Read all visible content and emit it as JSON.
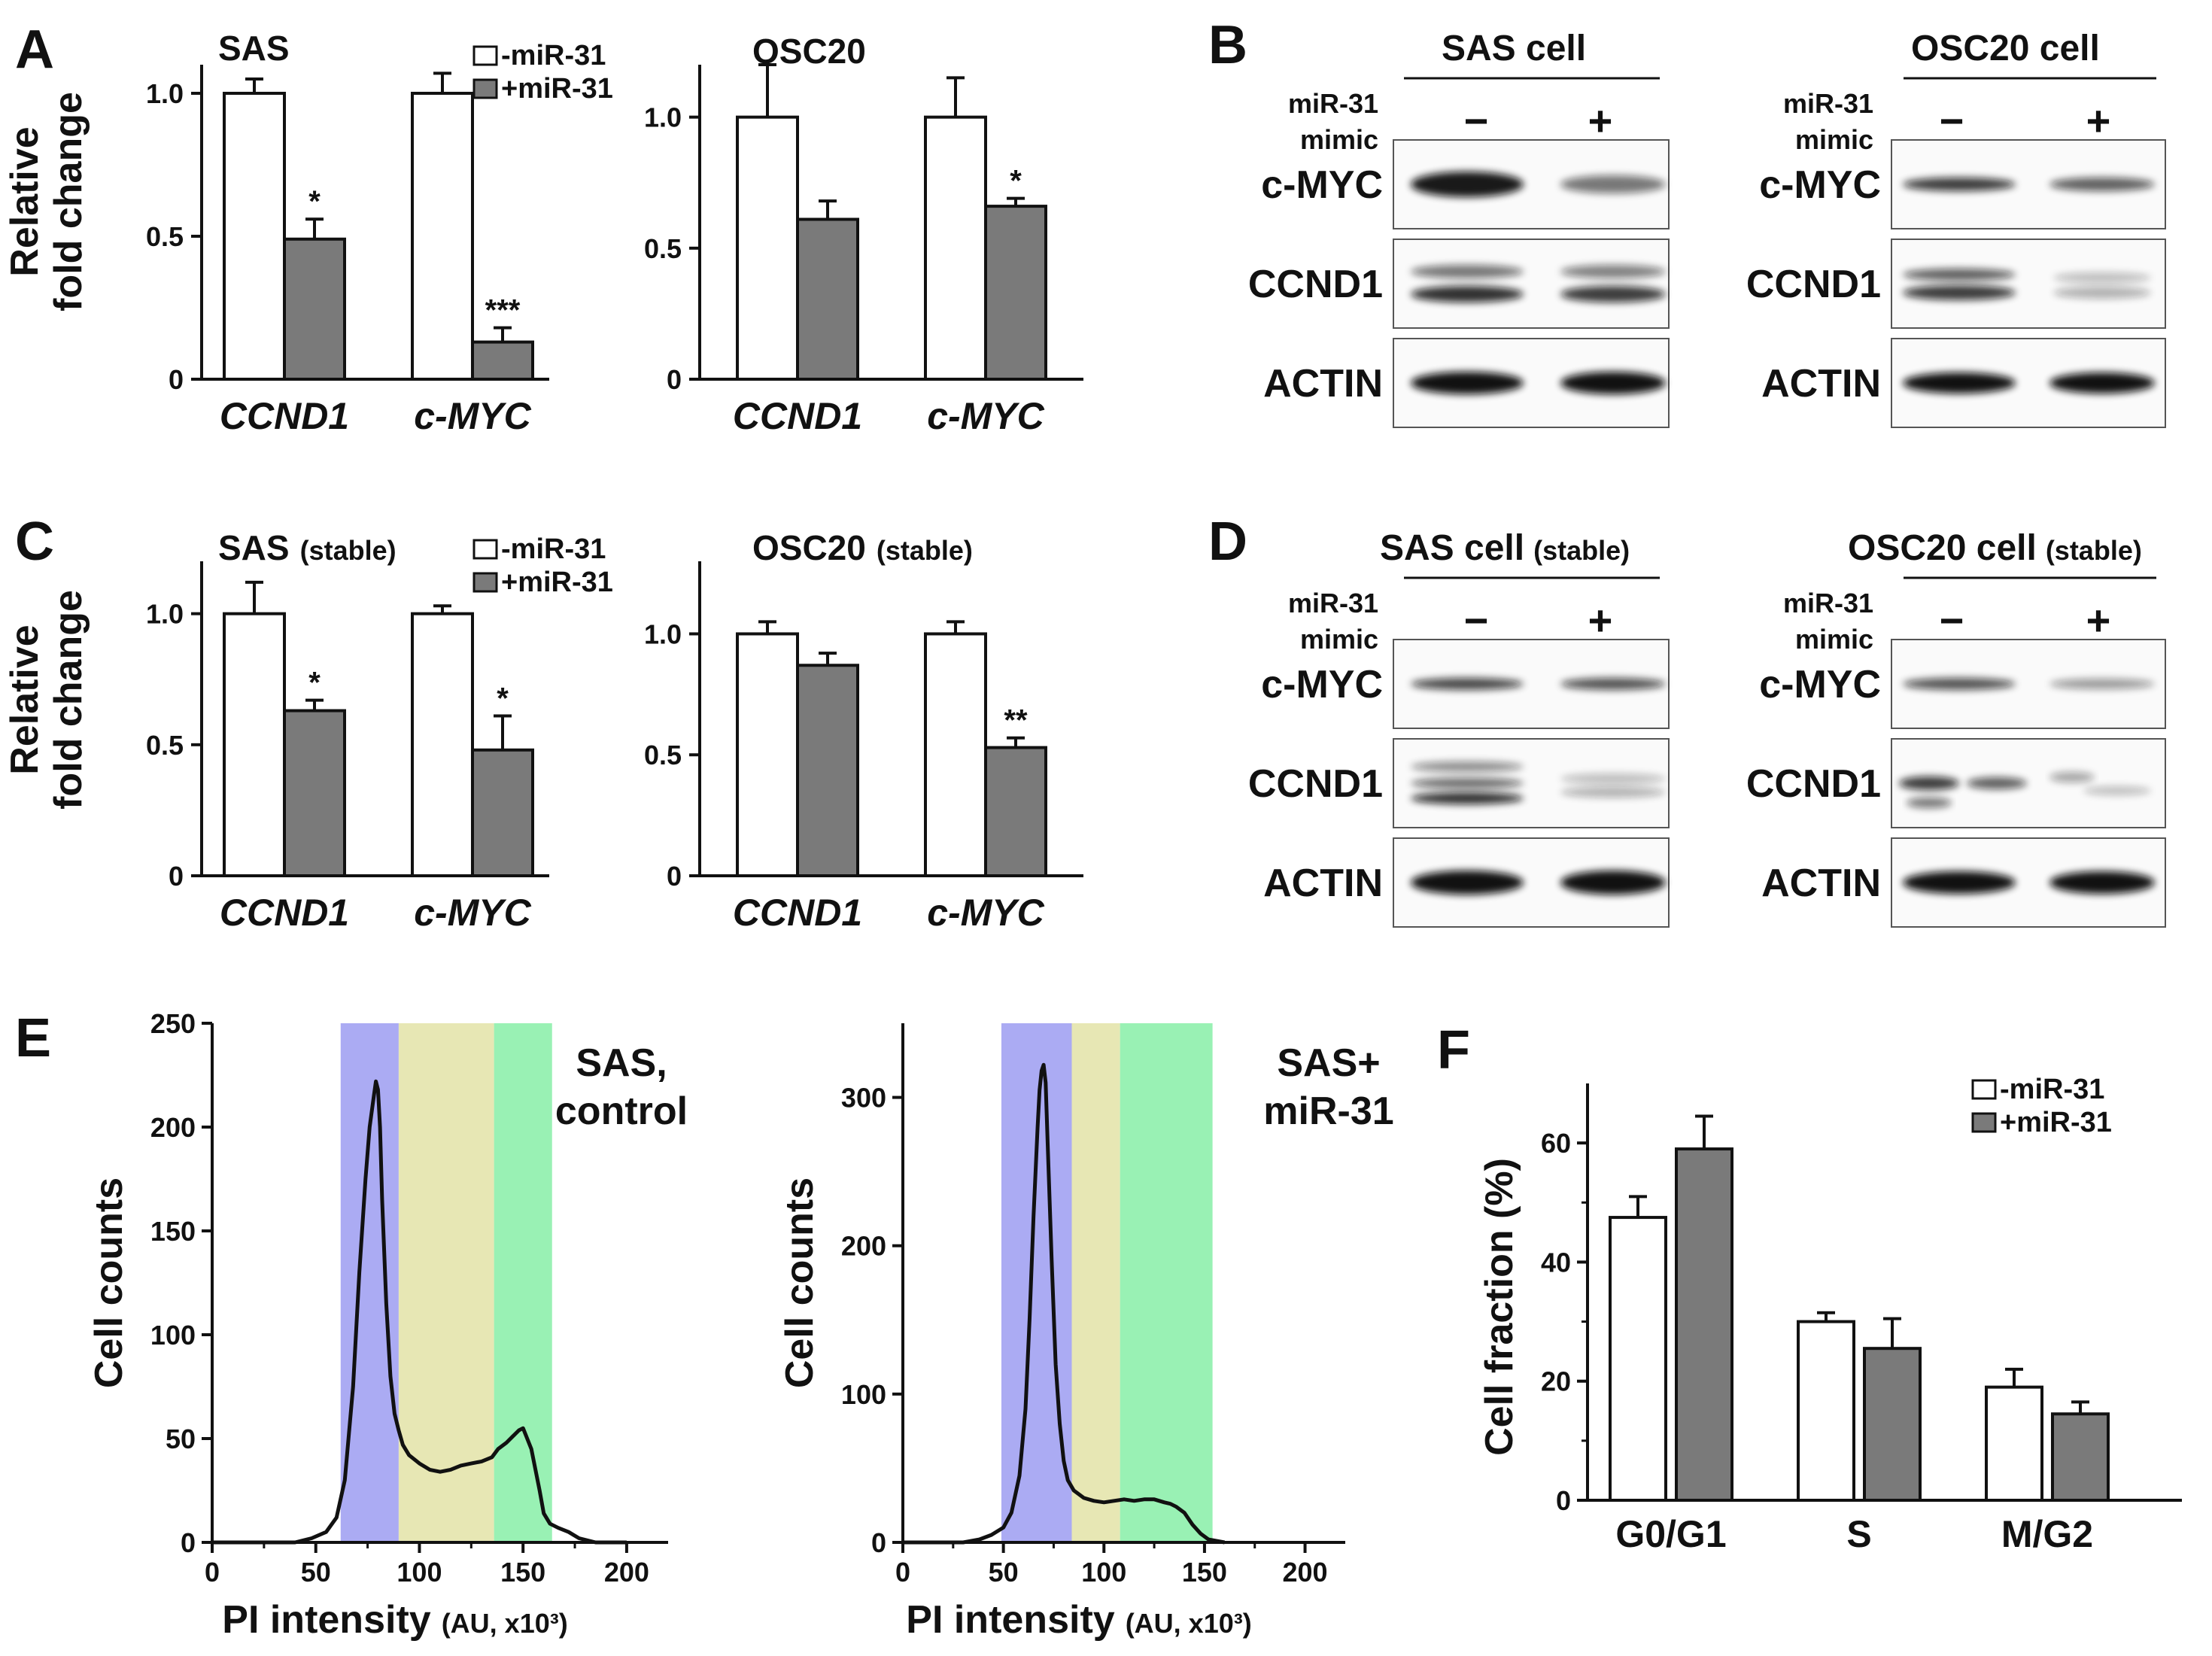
{
  "panels": {
    "A": {
      "letter": "A",
      "ylabel_line1": "Relative",
      "ylabel_line2": "fold change",
      "legend_minus": "-miR-31",
      "legend_plus": "+miR-31",
      "charts": [
        {
          "title": "SAS",
          "subtitle": "",
          "type": "bar",
          "categories": [
            "CCND1",
            "c-MYC"
          ],
          "ylim": [
            0,
            1.1
          ],
          "yticks": [
            "0",
            "0.5",
            "1.0"
          ],
          "series": [
            {
              "name": "-miR-31",
              "values": [
                1.0,
                1.0
              ],
              "errors": [
                0.05,
                0.07
              ]
            },
            {
              "name": "+miR-31",
              "values": [
                0.49,
                0.13
              ],
              "errors": [
                0.07,
                0.05
              ]
            }
          ],
          "significance": [
            "*",
            "***"
          ]
        },
        {
          "title": "OSC20",
          "subtitle": "",
          "type": "bar",
          "categories": [
            "CCND1",
            "c-MYC"
          ],
          "ylim": [
            0,
            1.2
          ],
          "yticks": [
            "0",
            "0.5",
            "1.0"
          ],
          "series": [
            {
              "name": "-miR-31",
              "values": [
                1.0,
                1.0
              ],
              "errors": [
                0.2,
                0.15
              ]
            },
            {
              "name": "+miR-31",
              "values": [
                0.61,
                0.66
              ],
              "errors": [
                0.07,
                0.03
              ]
            }
          ],
          "significance": [
            "",
            "*"
          ]
        }
      ]
    },
    "B": {
      "letter": "B",
      "mimic_line1": "miR-31",
      "mimic_line2": "mimic",
      "minus": "−",
      "plus": "+",
      "blots": [
        {
          "title": "SAS cell",
          "subtitle": "",
          "rows": [
            "c-MYC",
            "CCND1",
            "ACTIN"
          ]
        },
        {
          "title": "OSC20 cell",
          "subtitle": "",
          "rows": [
            "c-MYC",
            "CCND1",
            "ACTIN"
          ]
        }
      ]
    },
    "C": {
      "letter": "C",
      "ylabel_line1": "Relative",
      "ylabel_line2": "fold change",
      "legend_minus": "-miR-31",
      "legend_plus": "+miR-31",
      "charts": [
        {
          "title": "SAS",
          "subtitle": "(stable)",
          "type": "bar",
          "categories": [
            "CCND1",
            "c-MYC"
          ],
          "ylim": [
            0,
            1.2
          ],
          "yticks": [
            "0",
            "0.5",
            "1.0"
          ],
          "series": [
            {
              "name": "-miR-31",
              "values": [
                1.0,
                1.0
              ],
              "errors": [
                0.12,
                0.03
              ]
            },
            {
              "name": "+miR-31",
              "values": [
                0.63,
                0.48
              ],
              "errors": [
                0.04,
                0.13
              ]
            }
          ],
          "significance": [
            "*",
            "*"
          ]
        },
        {
          "title": "OSC20",
          "subtitle": "(stable)",
          "type": "bar",
          "categories": [
            "CCND1",
            "c-MYC"
          ],
          "ylim": [
            0,
            1.3
          ],
          "yticks": [
            "0",
            "0.5",
            "1.0"
          ],
          "series": [
            {
              "name": "-miR-31",
              "values": [
                1.0,
                1.0
              ],
              "errors": [
                0.05,
                0.05
              ]
            },
            {
              "name": "+miR-31",
              "values": [
                0.87,
                0.53
              ],
              "errors": [
                0.05,
                0.04
              ]
            }
          ],
          "significance": [
            "",
            "**"
          ]
        }
      ]
    },
    "D": {
      "letter": "D",
      "mimic_line1": "miR-31",
      "mimic_line2": "mimic",
      "minus": "−",
      "plus": "+",
      "blots": [
        {
          "title": "SAS cell",
          "subtitle": "(stable)",
          "rows": [
            "c-MYC",
            "CCND1",
            "ACTIN"
          ]
        },
        {
          "title": "OSC20 cell",
          "subtitle": "(stable)",
          "rows": [
            "c-MYC",
            "CCND1",
            "ACTIN"
          ]
        }
      ]
    },
    "E": {
      "letter": "E",
      "ylabel": "Cell counts",
      "xlabel_main": "PI intensity",
      "xlabel_sub": "(AU, x10³)",
      "colors": {
        "g1": "#a6a6f2",
        "s": "#e6e6b0",
        "g2m": "#93f0b0"
      },
      "charts": [
        {
          "type": "line",
          "label_line1": "SAS,",
          "label_line2": "control",
          "xlim": [
            0,
            220
          ],
          "ylim": [
            0,
            250
          ],
          "xticks": [
            "0",
            "50",
            "100",
            "150",
            "200"
          ],
          "yticks": [
            "0",
            "50",
            "100",
            "150",
            "200",
            "250"
          ],
          "gates": {
            "g1": [
              62,
              90
            ],
            "s": [
              90,
              136
            ],
            "g2m": [
              136,
              164
            ]
          },
          "x": [
            0,
            40,
            48,
            55,
            60,
            64,
            68,
            71,
            74,
            76,
            78,
            79,
            80,
            81,
            82,
            84,
            86,
            88,
            90,
            92,
            95,
            100,
            105,
            110,
            115,
            120,
            125,
            130,
            135,
            138,
            142,
            145,
            148,
            150,
            152,
            154,
            156,
            158,
            160,
            163,
            167,
            172,
            177,
            185,
            200
          ],
          "y": [
            0,
            0,
            2,
            5,
            12,
            30,
            75,
            130,
            175,
            200,
            215,
            222,
            218,
            200,
            165,
            115,
            80,
            62,
            54,
            47,
            42,
            38,
            35,
            34,
            35,
            37,
            38,
            39,
            41,
            45,
            48,
            51,
            54,
            55,
            50,
            45,
            35,
            25,
            14,
            9,
            7,
            5,
            2,
            0,
            0
          ]
        },
        {
          "type": "line",
          "label_line1": "SAS+",
          "label_line2": "miR-31",
          "xlim": [
            0,
            220
          ],
          "ylim": [
            0,
            350
          ],
          "xticks": [
            "0",
            "50",
            "100",
            "150",
            "200"
          ],
          "yticks": [
            "0",
            "100",
            "200",
            "300"
          ],
          "gates": {
            "g1": [
              49,
              84
            ],
            "s": [
              84,
              108
            ],
            "g2m": [
              108,
              154
            ]
          },
          "x": [
            0,
            30,
            38,
            44,
            50,
            54,
            58,
            61,
            63,
            65,
            67,
            68,
            69,
            70,
            71,
            72,
            74,
            76,
            78,
            80,
            82,
            85,
            90,
            95,
            100,
            105,
            110,
            115,
            120,
            125,
            130,
            133,
            136,
            140,
            144,
            148,
            152,
            160
          ],
          "y": [
            0,
            0,
            2,
            5,
            10,
            20,
            45,
            90,
            150,
            220,
            280,
            305,
            318,
            322,
            310,
            270,
            190,
            120,
            80,
            55,
            42,
            35,
            30,
            28,
            27,
            28,
            29,
            28,
            29,
            29,
            27,
            26,
            24,
            20,
            12,
            6,
            2,
            0
          ]
        }
      ]
    },
    "F": {
      "letter": "F",
      "type": "bar",
      "ylabel": "Cell fraction (%)",
      "legend_minus": "-miR-31",
      "legend_plus": "+miR-31",
      "categories": [
        "G0/G1",
        "S",
        "M/G2"
      ],
      "ylim": [
        0,
        70
      ],
      "yticks": [
        "0",
        "20",
        "40",
        "60"
      ],
      "series": [
        {
          "name": "-miR-31",
          "values": [
            47.5,
            30,
            19
          ],
          "errors": [
            3.5,
            1.5,
            3
          ]
        },
        {
          "name": "+miR-31",
          "values": [
            59,
            25.5,
            14.5
          ],
          "errors": [
            5.5,
            5,
            2
          ]
        }
      ]
    }
  },
  "colors": {
    "open_bar": "#ffffff",
    "filled_bar": "#7a7a7a",
    "ink": "#111111"
  }
}
